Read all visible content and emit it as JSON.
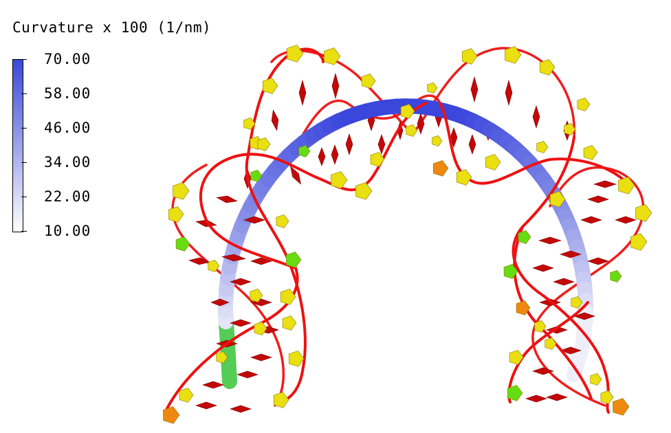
{
  "legend": {
    "title": "Curvature x 100 (1/nm)",
    "ticks": [
      "70.00",
      "58.00",
      "46.00",
      "34.00",
      "22.00",
      "10.00"
    ],
    "color_high": "#3a4ad8",
    "color_low": "#ffffff"
  },
  "colors": {
    "backbone": "#ee1111",
    "base_pair": "#c40808",
    "sugar_yellow": "#eadf10",
    "sugar_green": "#66dd11",
    "sugar_orange": "#ee8810",
    "axis_high": "#3b46dd",
    "axis_mid": "#8890e6",
    "axis_low": "#eeeef8",
    "axis_end_green": "#55cc55"
  }
}
